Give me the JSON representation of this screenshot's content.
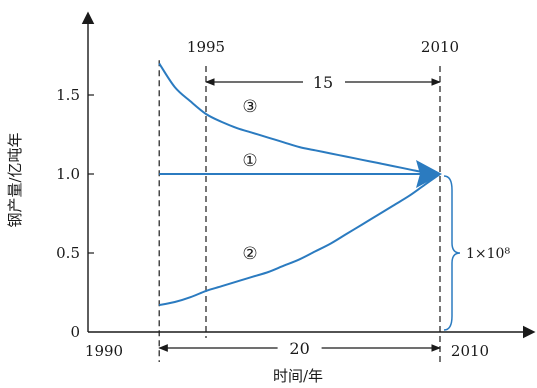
{
  "chart_data": {
    "type": "line",
    "ylabel": "钢产量/亿吨年",
    "xlabel": "时间/年",
    "x_tick_labels": [
      "1990",
      "2010"
    ],
    "x_marker_years": [
      1992,
      1995,
      2010
    ],
    "top_year_labels": [
      "1995",
      "2010"
    ],
    "y_ticks": [
      0,
      0.5,
      1.0,
      1.5
    ],
    "y_tick_labels": [
      "0",
      "0.5",
      "1.0",
      "1.5"
    ],
    "ylim": [
      0,
      1.8
    ],
    "xlim": [
      1987,
      2016
    ],
    "series": [
      {
        "name": "①",
        "color": "#2b7bc0",
        "x": [
          1992,
          2010
        ],
        "y": [
          1.0,
          1.0
        ]
      },
      {
        "name": "②",
        "color": "#2b7bc0",
        "x": [
          1992,
          1993,
          1994,
          1995,
          1996,
          1997,
          1998,
          1999,
          2000,
          2001,
          2002,
          2003,
          2004,
          2005,
          2006,
          2007,
          2008,
          2009,
          2010
        ],
        "y": [
          0.17,
          0.19,
          0.22,
          0.26,
          0.29,
          0.32,
          0.35,
          0.38,
          0.42,
          0.46,
          0.51,
          0.56,
          0.62,
          0.68,
          0.74,
          0.8,
          0.86,
          0.93,
          1.0
        ]
      },
      {
        "name": "③",
        "color": "#2b7bc0",
        "x": [
          1992,
          1993,
          1994,
          1995,
          1996,
          1997,
          1998,
          1999,
          2000,
          2001,
          2002,
          2003,
          2004,
          2005,
          2006,
          2007,
          2008,
          2009,
          2010
        ],
        "y": [
          1.7,
          1.55,
          1.46,
          1.38,
          1.33,
          1.29,
          1.26,
          1.23,
          1.2,
          1.17,
          1.15,
          1.13,
          1.11,
          1.09,
          1.07,
          1.05,
          1.03,
          1.01,
          1.0
        ]
      }
    ],
    "annotations": {
      "span_top": {
        "label": "15",
        "from": 1995,
        "to": 2010
      },
      "span_bottom": {
        "label": "20",
        "from": 1990,
        "to": 2010
      },
      "brace_label": "1×10⁸"
    }
  },
  "colors": {
    "series": "#2b7bc0",
    "axis": "#1a1a1a"
  }
}
